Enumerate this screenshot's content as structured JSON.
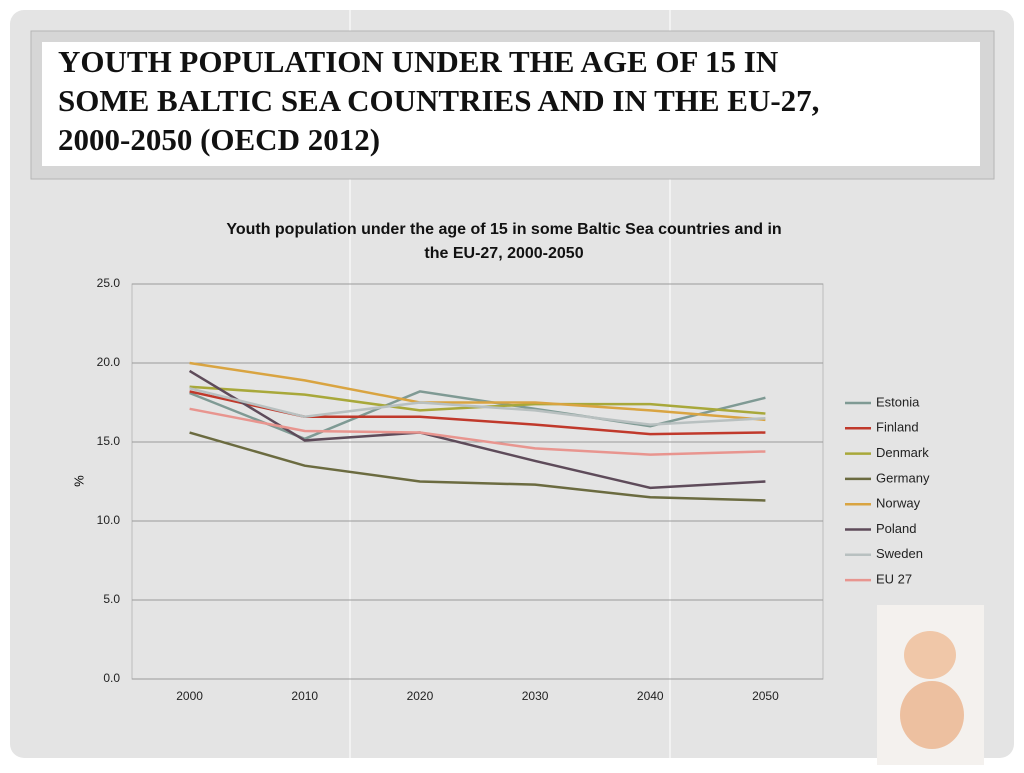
{
  "header": {
    "title_lines": [
      "YOUTH POPULATION UNDER THE AGE OF 15 IN",
      "SOME BALTIC SEA COUNTRIES AND IN THE EU-27,",
      "2000-2050 (OECD 2012)"
    ]
  },
  "chart_data": {
    "type": "line",
    "title_lines": [
      "Youth population under the age of 15 in some Baltic Sea countries and in",
      "the EU-27, 2000-2050"
    ],
    "y_label": "%",
    "categories": [
      "2000",
      "2010",
      "2020",
      "2030",
      "2040",
      "2050"
    ],
    "ylim": [
      0,
      25
    ],
    "yticks": [
      {
        "value": 0,
        "label": "0.0"
      },
      {
        "value": 5,
        "label": "5.0"
      },
      {
        "value": 10,
        "label": "10.0"
      },
      {
        "value": 15,
        "label": "15.0"
      },
      {
        "value": 20,
        "label": "20.0"
      },
      {
        "value": 25,
        "label": "25.0"
      }
    ],
    "grid": true,
    "legend": "right",
    "series": [
      {
        "name": "Estonia",
        "color": "#7f9a94",
        "values": [
          18.1,
          15.2,
          18.2,
          17.1,
          16.0,
          17.8
        ]
      },
      {
        "name": "Finland",
        "color": "#c0392b",
        "values": [
          18.2,
          16.6,
          16.6,
          16.1,
          15.5,
          15.6
        ]
      },
      {
        "name": "Denmark",
        "color": "#a8a83a",
        "values": [
          18.5,
          18.0,
          17.0,
          17.4,
          17.4,
          16.8
        ]
      },
      {
        "name": "Germany",
        "color": "#6b6b40",
        "values": [
          15.6,
          13.5,
          12.5,
          12.3,
          11.5,
          11.3
        ]
      },
      {
        "name": "Norway",
        "color": "#d9a441",
        "values": [
          20.0,
          18.9,
          17.5,
          17.5,
          17.0,
          16.4
        ]
      },
      {
        "name": "Poland",
        "color": "#5e4b5a",
        "values": [
          19.5,
          15.1,
          15.6,
          13.8,
          12.1,
          12.5
        ]
      },
      {
        "name": "Sweden",
        "color": "#b8c0c0",
        "values": [
          18.4,
          16.6,
          17.5,
          17.0,
          16.1,
          16.5
        ]
      },
      {
        "name": "EU 27",
        "color": "#e8958f",
        "values": [
          17.1,
          15.7,
          15.6,
          14.6,
          14.2,
          14.4
        ]
      }
    ]
  }
}
